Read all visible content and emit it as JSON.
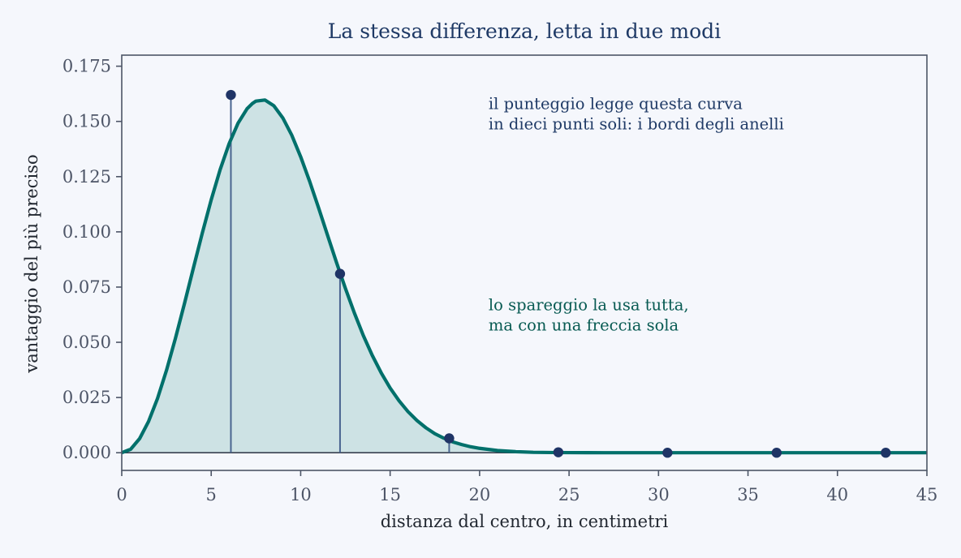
{
  "chart_data": {
    "type": "line",
    "title": "La stessa differenza, letta in due modi",
    "xlabel": "distanza dal centro, in centimetri",
    "ylabel": "vantaggio del più preciso",
    "xlim": [
      0,
      45
    ],
    "ylim": [
      -0.008,
      0.18
    ],
    "x_ticks": [
      0,
      5,
      10,
      15,
      20,
      25,
      30,
      35,
      40,
      45
    ],
    "x_tick_labels": [
      "0",
      "5",
      "10",
      "15",
      "20",
      "25",
      "30",
      "35",
      "40",
      "45"
    ],
    "y_ticks": [
      0,
      0.025,
      0.05,
      0.075,
      0.1,
      0.125,
      0.15,
      0.175
    ],
    "y_tick_labels": [
      "0.000",
      "0.025",
      "0.050",
      "0.075",
      "0.100",
      "0.125",
      "0.150",
      "0.175"
    ],
    "grid": false,
    "fill_under_curve": true,
    "series": [
      {
        "kind": "curve",
        "color": "#00706b",
        "x": [
          0,
          0.5,
          1,
          1.5,
          2,
          2.5,
          3,
          3.5,
          4,
          4.5,
          5,
          5.5,
          6,
          6.5,
          7,
          7.3,
          7.5,
          8,
          8.5,
          9,
          9.5,
          10,
          10.5,
          11,
          11.5,
          12,
          12.5,
          13,
          13.5,
          14,
          14.5,
          15,
          15.5,
          16,
          16.5,
          17,
          17.5,
          18,
          18.5,
          19,
          19.5,
          20,
          21,
          22,
          23,
          24,
          25,
          26,
          27,
          28,
          30,
          33,
          36,
          40,
          45
        ],
        "y": [
          0,
          0.0016,
          0.0064,
          0.0142,
          0.0246,
          0.0373,
          0.0518,
          0.0674,
          0.0835,
          0.0994,
          0.1145,
          0.1282,
          0.1399,
          0.1492,
          0.1557,
          0.1581,
          0.1592,
          0.1597,
          0.1571,
          0.1516,
          0.1438,
          0.134,
          0.1229,
          0.1109,
          0.0985,
          0.0862,
          0.0744,
          0.0633,
          0.0531,
          0.0441,
          0.0362,
          0.0293,
          0.0235,
          0.0186,
          0.0146,
          0.0113,
          0.0086,
          0.0066,
          0.0049,
          0.0037,
          0.0027,
          0.002,
          0.001,
          0.0005,
          0.0002,
          0.0001,
          5e-05,
          2e-05,
          1e-05,
          5e-06,
          1e-06,
          0,
          0,
          0,
          0
        ]
      },
      {
        "kind": "points",
        "color": "#1f3466",
        "x": [
          6.1,
          12.2,
          18.3,
          24.4,
          30.5,
          36.6,
          42.7
        ],
        "y": [
          0.162,
          0.081,
          0.0065,
          0.0002,
          0.0,
          0.0,
          0.0
        ],
        "stems": [
          true,
          true,
          true,
          false,
          false,
          false,
          false
        ]
      }
    ],
    "annotations": [
      {
        "lines": [
          "il punteggio legge questa curva",
          "in dieci punti soli: i bordi degli anelli"
        ],
        "x": 20.5,
        "y": 0.1555,
        "color": "#1f3a66"
      },
      {
        "lines": [
          "lo spareggio la usa tutta,",
          "ma con una freccia sola"
        ],
        "x": 20.5,
        "y": 0.0645,
        "color": "#075a52"
      }
    ],
    "colors": {
      "background": "#f5f7fc",
      "curve": "#00706b",
      "fill": "#cde2e4",
      "points": "#1f3466",
      "stems": "#4a6590",
      "axes": "#4d5567"
    }
  }
}
